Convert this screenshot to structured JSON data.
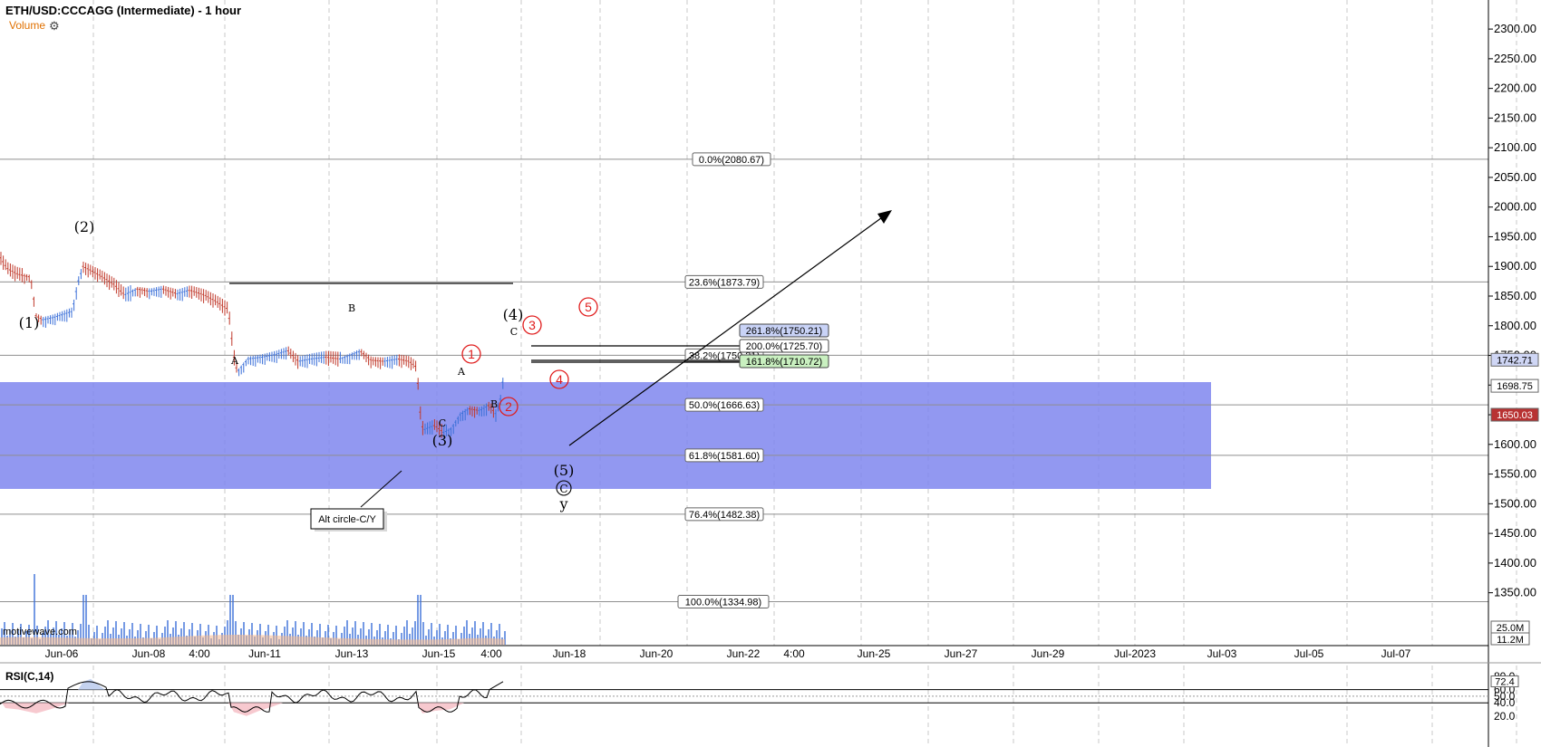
{
  "header": {
    "title": "ETH/USD:CCCAGG (Intermediate) - 1 hour",
    "volume_label": "Volume",
    "watermark": "motivewave.com",
    "rsi_label": "RSI(C,14)"
  },
  "colors": {
    "zone": "#7f86ee",
    "up_candle": "#3a6fd8",
    "down_candle": "#c0392b",
    "price_tag_last": "#b83232",
    "price_tag_blue": "#3a5bcc"
  },
  "chart_data": {
    "type": "ohlc",
    "price_axis": {
      "range": [
        1300,
        2330
      ],
      "ticks": [
        "2300.00",
        "2250.00",
        "2200.00",
        "2150.00",
        "2100.00",
        "2050.00",
        "2000.00",
        "1950.00",
        "1900.00",
        "1850.00",
        "1800.00",
        "1750.00",
        "1700.00",
        "1650.00",
        "1600.00",
        "1550.00",
        "1500.00",
        "1450.00",
        "1400.00",
        "1350.00"
      ]
    },
    "time_axis": {
      "ticks": [
        "Jun-06",
        "Jun-08",
        "4:00",
        "Jun-11",
        "Jun-13",
        "Jun-15",
        "4:00",
        "Jun-18",
        "Jun-20",
        "Jun-22",
        "4:00",
        "Jun-25",
        "Jun-27",
        "Jun-29",
        "Jul-2023",
        "Jul-03",
        "Jul-05",
        "Jul-07"
      ]
    },
    "price_tags": [
      {
        "text": "1742.71",
        "price": 1742.71,
        "style": "blue"
      },
      {
        "text": "1698.75",
        "price": 1698.75,
        "style": "plain"
      },
      {
        "text": "1650.03",
        "price": 1650.03,
        "style": "red"
      }
    ],
    "volume_tags": [
      "25.0M",
      "11.2M"
    ],
    "fib_levels": [
      {
        "label": "0.0%(2080.67)",
        "price": 2080.67
      },
      {
        "label": "23.6%(1873.79)",
        "price": 1873.79
      },
      {
        "label": "38.2%(1750.21)",
        "price": 1750.21
      },
      {
        "label": "50.0%(1666.63)",
        "price": 1666.63
      },
      {
        "label": "61.8%(1581.60)",
        "price": 1581.6
      },
      {
        "label": "76.4%(1482.38)",
        "price": 1482.38
      },
      {
        "label": "100.0%(1334.98)",
        "price": 1334.98
      }
    ],
    "ext_levels": [
      {
        "label": "261.8%(1750.21)",
        "price": 1750.21,
        "fill": "#c9d3f7"
      },
      {
        "label": "200.0%(1725.70)",
        "price": 1725.7,
        "fill": "#ffffff"
      },
      {
        "label": "161.8%(1710.72)",
        "price": 1710.72,
        "fill": "#c9f0c0"
      }
    ],
    "zone": {
      "top": 1705,
      "bottom": 1525
    },
    "wave_labels": [
      {
        "text": "(1)",
        "style": "black"
      },
      {
        "text": "(2)",
        "style": "black"
      },
      {
        "text": "A",
        "style": "small"
      },
      {
        "text": "B",
        "style": "small"
      },
      {
        "text": "C",
        "style": "small"
      },
      {
        "text": "(3)",
        "style": "black"
      },
      {
        "text": "A",
        "style": "small"
      },
      {
        "text": "B",
        "style": "small"
      },
      {
        "text": "C",
        "style": "small"
      },
      {
        "text": "(4)",
        "style": "black"
      },
      {
        "text": "1",
        "style": "red"
      },
      {
        "text": "2",
        "style": "red"
      },
      {
        "text": "3",
        "style": "red"
      },
      {
        "text": "4",
        "style": "red"
      },
      {
        "text": "5",
        "style": "red"
      },
      {
        "text": "(5)",
        "style": "black"
      },
      {
        "text": "C",
        "style": "circle"
      },
      {
        "text": "y",
        "style": "black"
      }
    ],
    "annotation": "Alt circle-C/Y",
    "rsi": {
      "ticks": [
        "80.0",
        "60.0",
        "50.0",
        "40.0",
        "20.0"
      ],
      "last": "72.4"
    }
  }
}
